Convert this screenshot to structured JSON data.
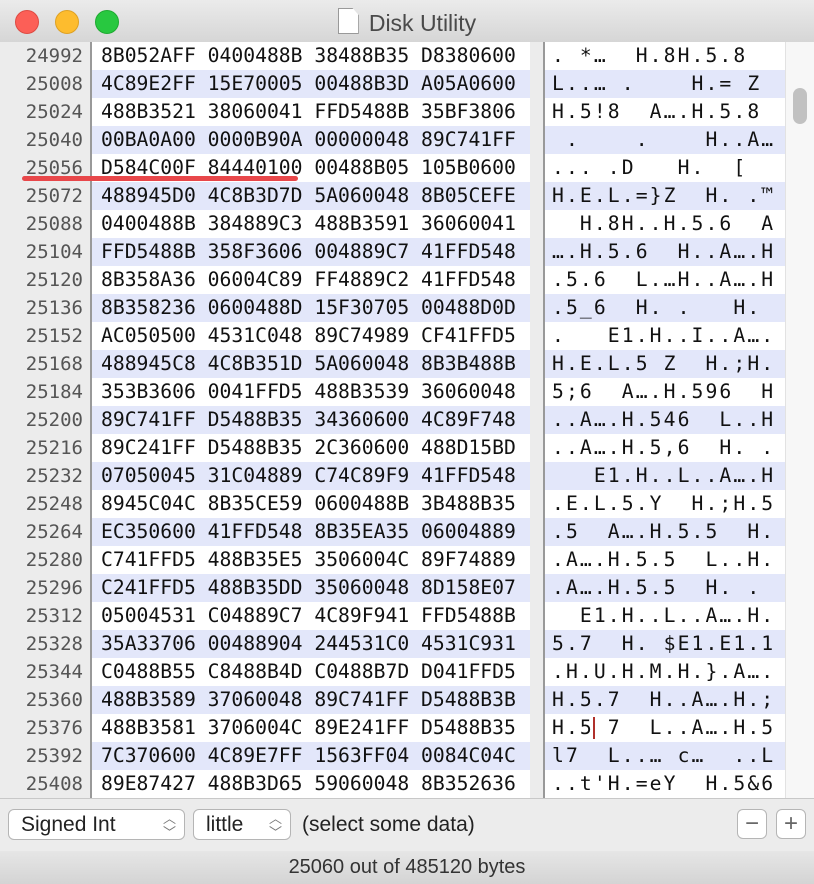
{
  "window": {
    "title": "Disk Utility",
    "title_icon": "document-icon"
  },
  "offsets": [
    "24992",
    "25008",
    "25024",
    "25040",
    "25056",
    "25072",
    "25088",
    "25104",
    "25120",
    "25136",
    "25152",
    "25168",
    "25184",
    "25200",
    "25216",
    "25232",
    "25248",
    "25264",
    "25280",
    "25296",
    "25312",
    "25328",
    "25344",
    "25360",
    "25376",
    "25392",
    "25408"
  ],
  "hex_rows": [
    "8B052AFF 0400488B 38488B35 D8380600",
    "4C89E2FF 15E70005 00488B3D A05A0600",
    "488B3521 38060041 FFD5488B 35BF3806",
    "00BA0A00 0000B90A 00000048 89C741FF",
    "D584C00F 84440100 00488B05 105B0600",
    "488945D0 4C8B3D7D 5A060048 8B05CEFE",
    "0400488B 384889C3 488B3591 36060041",
    "FFD5488B 358F3606 004889C7 41FFD548",
    "8B358A36 06004C89 FF4889C2 41FFD548",
    "8B358236 0600488D 15F30705 00488D0D",
    "AC050500 4531C048 89C74989 CF41FFD5",
    "488945C8 4C8B351D 5A060048 8B3B488B",
    "353B3606 0041FFD5 488B3539 36060048",
    "89C741FF D5488B35 34360600 4C89F748",
    "89C241FF D5488B35 2C360600 488D15BD",
    "07050045 31C04889 C74C89F9 41FFD548",
    "8945C04C 8B35CE59 0600488B 3B488B35",
    "EC350600 41FFD548 8B35EA35 06004889",
    "C741FFD5 488B35E5 3506004C 89F74889",
    "C241FFD5 488B35DD 35060048 8D158E07",
    "05004531 C04889C7 4C89F941 FFD5488B",
    "35A33706 00488904 244531C0 4531C931",
    "C0488B55 C8488B4D C0488B7D D041FFD5",
    "488B3589 37060048 89C741FF D5488B3B",
    "488B3581 3706004C 89E241FF D5488B35",
    "7C370600 4C89E7FF 1563FF04 0084C04C",
    "89E87427 488B3D65 59060048 8B352636"
  ],
  "ascii_rows": [
    ". *…  H.8H.5.8",
    "L..… .    H.= Z",
    "H.5!8  A….H.5.8",
    " .    .    H..A…",
    "... .D   H.  [",
    "H.E.L.=}Z  H. .™",
    "  H.8H..H.5.6  A",
    "….H.5.6  H..A….H",
    ".5.6  L.…H..A….H",
    ".5_6  H. .   H.",
    ".   E1.H..I..A….",
    "H.E.L.5 Z  H.;H.",
    "5;6  A….H.596  H",
    "..A….H.546  L..H",
    "..A….H.5,6  H. .",
    "   E1.H..L..A….H",
    ".E.L.5.Y  H.;H.5",
    ".5  A….H.5.5  H.",
    ".A….H.5.5  L..H.",
    ".A….H.5.5  H. .",
    "  E1.H..L..A….H.",
    "5.7  H. $E1.E1.1",
    ".H.U.H.M.H.}.A….",
    "H.5.7  H..A….H.;",
    "H.5 7  L..A….H.5",
    "l7  L..… c…  ..L",
    "..t'H.=eY  H.5&6"
  ],
  "toolbar": {
    "type_select": "Signed Int",
    "endian_select": "little",
    "selection_text": "(select some data)",
    "add_label": "+"
  },
  "status": "25060 out of 485120 bytes",
  "colors": {
    "stripe": "#e3e7fa",
    "annotation_underline": "#e8474a",
    "cursor": "#b0302b"
  }
}
